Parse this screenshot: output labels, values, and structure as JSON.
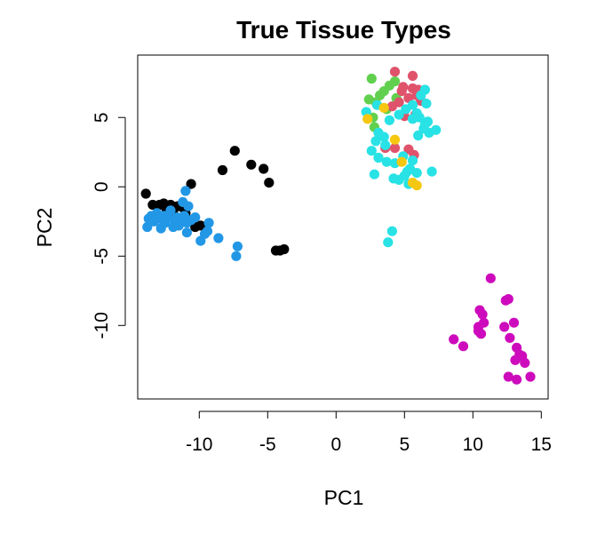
{
  "chart_data": {
    "type": "scatter",
    "title": "True Tissue Types",
    "xlabel": "PC1",
    "ylabel": "PC2",
    "xlim": [
      -14.5,
      15.5
    ],
    "ylim": [
      -15.3,
      9.5
    ],
    "x_ticks": [
      -10,
      -5,
      0,
      5,
      10,
      15
    ],
    "y_ticks": [
      -10,
      -5,
      0,
      5
    ],
    "x_tick_labels": [
      "-10",
      "-5",
      "0",
      "5",
      "10",
      "15"
    ],
    "y_tick_labels": [
      "-10",
      "-5",
      "0",
      "5"
    ],
    "grid": false,
    "legend": "none",
    "series": [
      {
        "color": "#000000",
        "points": [
          [
            -13.9,
            -0.5
          ],
          [
            -13.4,
            -1.3
          ],
          [
            -13.1,
            -1.4
          ],
          [
            -12.9,
            -1.3
          ],
          [
            -12.6,
            -1.2
          ],
          [
            -12.4,
            -1.6
          ],
          [
            -12.1,
            -1.3
          ],
          [
            -11.9,
            -1.7
          ],
          [
            -11.6,
            -1.4
          ],
          [
            -11.2,
            -1.5
          ],
          [
            -11.0,
            -1.9
          ],
          [
            -10.6,
            0.2
          ],
          [
            -10.3,
            -2.9
          ],
          [
            -9.9,
            -2.8
          ],
          [
            -8.3,
            1.2
          ],
          [
            -7.4,
            2.6
          ],
          [
            -6.2,
            1.6
          ],
          [
            -5.3,
            1.3
          ],
          [
            -4.9,
            0.3
          ],
          [
            -4.4,
            -4.6
          ],
          [
            -4.1,
            -4.6
          ],
          [
            -3.8,
            -4.5
          ]
        ]
      },
      {
        "color": "#2297E6",
        "points": [
          [
            -13.8,
            -2.9
          ],
          [
            -13.7,
            -2.3
          ],
          [
            -13.5,
            -2.1
          ],
          [
            -13.3,
            -2.5
          ],
          [
            -13.1,
            -1.9
          ],
          [
            -12.9,
            -2.3
          ],
          [
            -12.8,
            -3.0
          ],
          [
            -12.6,
            -2.1
          ],
          [
            -12.5,
            -2.6
          ],
          [
            -12.3,
            -2.2
          ],
          [
            -12.1,
            -1.7
          ],
          [
            -11.9,
            -2.9
          ],
          [
            -11.8,
            -2.4
          ],
          [
            -11.6,
            -2.2
          ],
          [
            -11.5,
            -2.8
          ],
          [
            -11.3,
            -2.5
          ],
          [
            -11.2,
            -1.1
          ],
          [
            -11.1,
            -2.1
          ],
          [
            -11.0,
            -0.3
          ],
          [
            -10.9,
            -2.6
          ],
          [
            -10.8,
            -1.4
          ],
          [
            -10.6,
            -2.4
          ],
          [
            -10.9,
            -3.3
          ],
          [
            -10.3,
            -2.2
          ],
          [
            -9.9,
            -3.9
          ],
          [
            -9.6,
            -3.4
          ],
          [
            -9.4,
            -3.2
          ],
          [
            -9.3,
            -2.6
          ],
          [
            -8.6,
            -3.7
          ],
          [
            -7.2,
            -4.3
          ],
          [
            -7.3,
            -5.0
          ]
        ]
      },
      {
        "color": "#61D04F",
        "points": [
          [
            2.6,
            7.8
          ],
          [
            2.4,
            6.3
          ],
          [
            2.9,
            6.1
          ],
          [
            3.2,
            6.6
          ],
          [
            3.5,
            6.9
          ],
          [
            3.9,
            7.3
          ],
          [
            4.3,
            7.6
          ],
          [
            3.7,
            5.6
          ],
          [
            4.4,
            6.4
          ],
          [
            2.7,
            5.0
          ],
          [
            2.8,
            4.3
          ]
        ]
      },
      {
        "color": "#DF536B",
        "points": [
          [
            4.3,
            8.3
          ],
          [
            5.6,
            8.0
          ],
          [
            4.9,
            7.2
          ],
          [
            5.6,
            7.1
          ],
          [
            6.0,
            7.0
          ],
          [
            4.6,
            6.1
          ],
          [
            5.3,
            6.4
          ],
          [
            5.9,
            6.6
          ],
          [
            4.1,
            5.8
          ],
          [
            5.0,
            5.1
          ],
          [
            5.8,
            5.2
          ],
          [
            4.8,
            6.9
          ],
          [
            3.6,
            2.8
          ],
          [
            4.3,
            2.8
          ],
          [
            5.3,
            2.7
          ],
          [
            5.7,
            2.3
          ],
          [
            6.2,
            6.2
          ]
        ]
      },
      {
        "color": "#28E2E5",
        "points": [
          [
            6.5,
            7.0
          ],
          [
            6.2,
            6.6
          ],
          [
            6.6,
            6.0
          ],
          [
            5.6,
            5.9
          ],
          [
            5.1,
            5.6
          ],
          [
            5.9,
            5.3
          ],
          [
            6.1,
            5.0
          ],
          [
            5.6,
            4.9
          ],
          [
            6.5,
            4.5
          ],
          [
            6.7,
            4.7
          ],
          [
            6.4,
            4.2
          ],
          [
            6.8,
            3.9
          ],
          [
            7.3,
            4.1
          ],
          [
            6.0,
            3.7
          ],
          [
            3.1,
            3.9
          ],
          [
            3.5,
            3.6
          ],
          [
            2.9,
            3.3
          ],
          [
            3.6,
            3.0
          ],
          [
            2.6,
            2.6
          ],
          [
            3.1,
            2.1
          ],
          [
            3.7,
            1.8
          ],
          [
            4.3,
            1.7
          ],
          [
            4.9,
            2.2
          ],
          [
            5.6,
            1.9
          ],
          [
            5.2,
            1.1
          ],
          [
            5.9,
            1.0
          ],
          [
            5.4,
            1.3
          ],
          [
            5.0,
            0.8
          ],
          [
            4.6,
            0.5
          ],
          [
            5.3,
            0.2
          ],
          [
            4.2,
            0.6
          ],
          [
            2.8,
            0.9
          ],
          [
            7.0,
            1.1
          ],
          [
            4.1,
            -3.2
          ],
          [
            3.8,
            -4.0
          ],
          [
            3.0,
            5.9
          ],
          [
            2.2,
            5.4
          ],
          [
            4.6,
            5.2
          ],
          [
            3.9,
            4.8
          ]
        ]
      },
      {
        "color": "#F5C710",
        "points": [
          [
            2.3,
            4.9
          ],
          [
            3.5,
            5.7
          ],
          [
            4.3,
            3.4
          ],
          [
            4.8,
            1.8
          ],
          [
            5.6,
            0.3
          ],
          [
            5.9,
            0.1
          ]
        ]
      },
      {
        "color": "#CD0BBC",
        "points": [
          [
            11.3,
            -6.6
          ],
          [
            12.4,
            -8.2
          ],
          [
            12.6,
            -8.1
          ],
          [
            10.5,
            -8.9
          ],
          [
            10.7,
            -9.2
          ],
          [
            10.8,
            -9.8
          ],
          [
            10.4,
            -10.1
          ],
          [
            10.6,
            -10.6
          ],
          [
            10.4,
            -10.4
          ],
          [
            12.3,
            -10.1
          ],
          [
            13.0,
            -9.8
          ],
          [
            12.7,
            -10.9
          ],
          [
            8.6,
            -11.0
          ],
          [
            9.3,
            -11.5
          ],
          [
            13.2,
            -11.6
          ],
          [
            13.4,
            -12.1
          ],
          [
            13.6,
            -12.2
          ],
          [
            13.1,
            -12.5
          ],
          [
            13.8,
            -12.7
          ],
          [
            12.6,
            -13.7
          ],
          [
            13.2,
            -13.9
          ],
          [
            14.2,
            -13.7
          ]
        ]
      }
    ]
  }
}
